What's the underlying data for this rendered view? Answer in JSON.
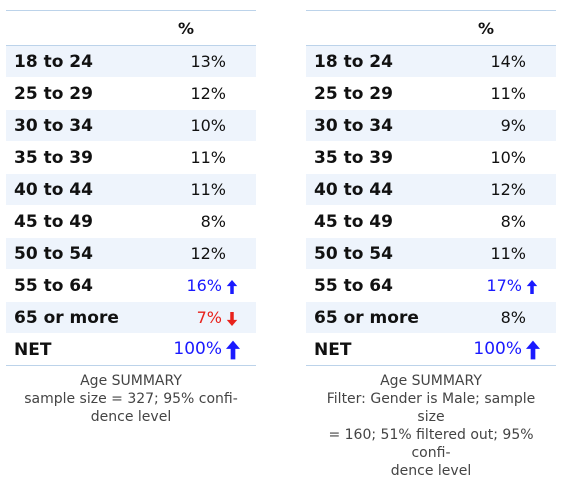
{
  "colors": {
    "up": "#1a1aff",
    "down": "#e8221c",
    "normal": "#111111",
    "stripe": "#eef4fc"
  },
  "tables": [
    {
      "header": "%",
      "rows": [
        {
          "label": "18 to 24",
          "value": "13%",
          "flag": "none"
        },
        {
          "label": "25 to 29",
          "value": "12%",
          "flag": "none"
        },
        {
          "label": "30 to 34",
          "value": "10%",
          "flag": "none"
        },
        {
          "label": "35 to 39",
          "value": "11%",
          "flag": "none"
        },
        {
          "label": "40 to 44",
          "value": "11%",
          "flag": "none"
        },
        {
          "label": "45 to 49",
          "value": "8%",
          "flag": "none"
        },
        {
          "label": "50 to 54",
          "value": "12%",
          "flag": "none"
        },
        {
          "label": "55 to 64",
          "value": "16%",
          "flag": "up-arrow-icon"
        },
        {
          "label": "65 or more",
          "value": "7%",
          "flag": "down-arrow-icon"
        },
        {
          "label": "NET",
          "value": "100%",
          "flag": "up-arrow-icon"
        }
      ],
      "caption_lines": [
        "Age SUMMARY",
        "sample size = 327; 95% confi-",
        "dence level"
      ]
    },
    {
      "header": "%",
      "rows": [
        {
          "label": "18 to 24",
          "value": "14%",
          "flag": "none"
        },
        {
          "label": "25 to 29",
          "value": "11%",
          "flag": "none"
        },
        {
          "label": "30 to 34",
          "value": "9%",
          "flag": "none"
        },
        {
          "label": "35 to 39",
          "value": "10%",
          "flag": "none"
        },
        {
          "label": "40 to 44",
          "value": "12%",
          "flag": "none"
        },
        {
          "label": "45 to 49",
          "value": "8%",
          "flag": "none"
        },
        {
          "label": "50 to 54",
          "value": "11%",
          "flag": "none"
        },
        {
          "label": "55 to 64",
          "value": "17%",
          "flag": "up-arrow-icon"
        },
        {
          "label": "65 or more",
          "value": "8%",
          "flag": "none"
        },
        {
          "label": "NET",
          "value": "100%",
          "flag": "up-arrow-icon"
        }
      ],
      "caption_lines": [
        "Age SUMMARY",
        "Filter: Gender is Male; sample size",
        "= 160; 51% filtered out; 95% confi-",
        "dence level"
      ]
    }
  ]
}
